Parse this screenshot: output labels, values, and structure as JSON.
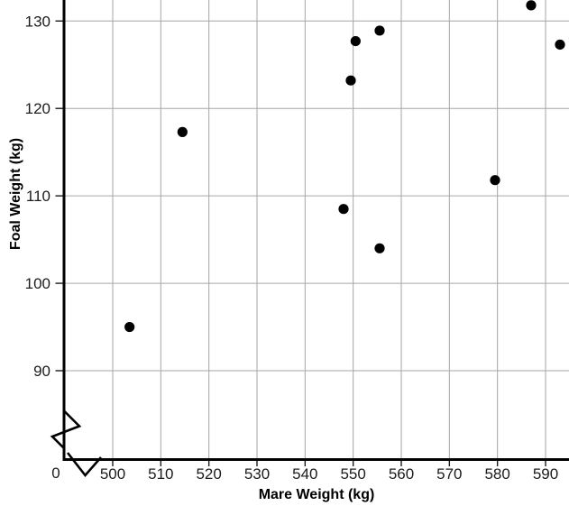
{
  "chart_data": {
    "type": "scatter",
    "title": "",
    "xlabel": "Mare Weight (kg)",
    "ylabel": "Foal Weight (kg)",
    "origin_label": "0",
    "x_ticks": [
      500,
      510,
      520,
      530,
      540,
      550,
      560,
      570,
      580,
      590
    ],
    "y_ticks": [
      90,
      100,
      110,
      120,
      130
    ],
    "xlim": [
      490,
      595
    ],
    "ylim": [
      80,
      132.5
    ],
    "axis_break": {
      "x_axis": true,
      "y_axis": true
    },
    "grid": true,
    "legend": false,
    "points": [
      {
        "x": 503.5,
        "y": 95.0
      },
      {
        "x": 514.5,
        "y": 117.3
      },
      {
        "x": 548.0,
        "y": 108.5
      },
      {
        "x": 549.5,
        "y": 123.2
      },
      {
        "x": 550.5,
        "y": 127.7
      },
      {
        "x": 555.5,
        "y": 128.9
      },
      {
        "x": 555.5,
        "y": 104.0
      },
      {
        "x": 579.5,
        "y": 111.8
      },
      {
        "x": 587.0,
        "y": 131.8
      },
      {
        "x": 593.0,
        "y": 127.3
      }
    ],
    "colors": {
      "point": "#000000",
      "axis": "#000000",
      "grid": "#a6a6a6",
      "tick": "#1c1c1c",
      "background": "#ffffff"
    }
  }
}
